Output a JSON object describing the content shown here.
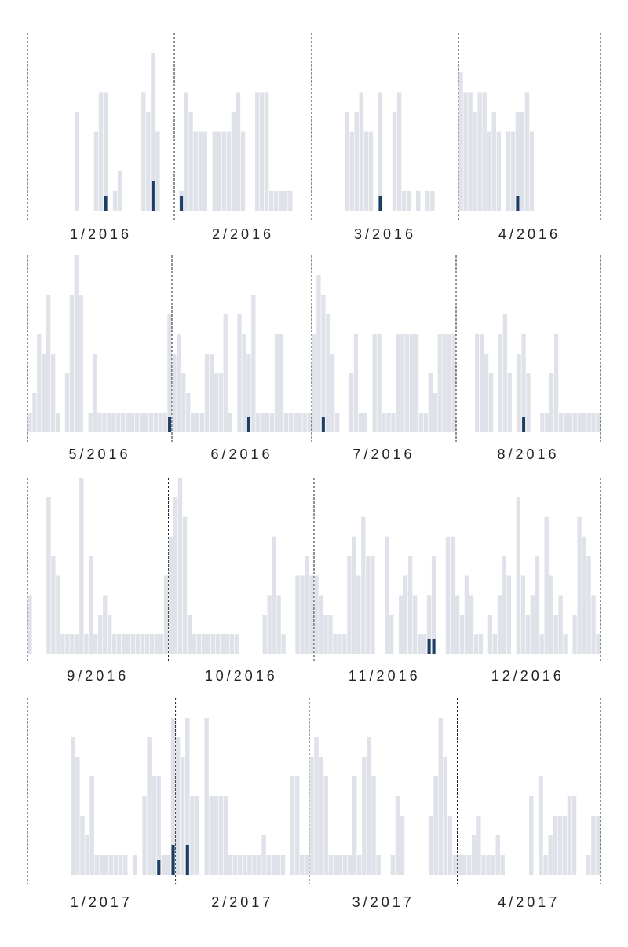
{
  "chart_data": {
    "type": "bar",
    "unit": "day",
    "colors": {
      "background_bar": "#dfe3e9",
      "highlight_bar": "#1d3d63",
      "divider": "#222222",
      "label": "#222222"
    },
    "grid": false,
    "rows": [
      {
        "months": [
          {
            "label": "1/2016",
            "days": 31,
            "bars": [
              0,
              0,
              0,
              0,
              0,
              0,
              0,
              0,
              0,
              0,
              5,
              0,
              0,
              0,
              4,
              6,
              6,
              0,
              1,
              2,
              0,
              0,
              0,
              0,
              6,
              5,
              8,
              4,
              0,
              0,
              0
            ],
            "highlight": [
              0,
              0,
              0,
              0,
              0,
              0,
              0,
              0,
              0,
              0,
              0,
              0,
              0,
              0,
              0,
              0,
              1,
              0,
              0,
              0,
              0,
              0,
              0,
              0,
              0,
              0,
              2,
              0,
              0,
              0,
              0
            ]
          },
          {
            "label": "2/2016",
            "days": 29,
            "bars": [
              0,
              1,
              6,
              5,
              4,
              4,
              4,
              0,
              4,
              4,
              4,
              4,
              5,
              6,
              4,
              0,
              0,
              6,
              6,
              6,
              1,
              1,
              1,
              1,
              1,
              0,
              0,
              0,
              0
            ],
            "highlight": [
              0,
              1,
              0,
              0,
              0,
              0,
              0,
              0,
              0,
              0,
              0,
              0,
              0,
              0,
              0,
              0,
              0,
              0,
              0,
              0,
              0,
              0,
              0,
              0,
              0,
              0,
              0,
              0,
              0
            ]
          },
          {
            "label": "3/2016",
            "days": 31,
            "bars": [
              0,
              0,
              0,
              0,
              0,
              0,
              0,
              5,
              4,
              5,
              6,
              4,
              4,
              0,
              6,
              0,
              0,
              5,
              6,
              1,
              1,
              0,
              1,
              0,
              1,
              1,
              0,
              0,
              0,
              0,
              0
            ],
            "highlight": [
              0,
              0,
              0,
              0,
              0,
              0,
              0,
              0,
              0,
              0,
              0,
              0,
              0,
              0,
              1,
              0,
              0,
              0,
              0,
              0,
              0,
              0,
              0,
              0,
              0,
              0,
              0,
              0,
              0,
              0,
              0
            ]
          },
          {
            "label": "4/2016",
            "days": 30,
            "bars": [
              7,
              6,
              6,
              5,
              6,
              6,
              4,
              5,
              4,
              0,
              4,
              4,
              5,
              5,
              6,
              4,
              0,
              0,
              0,
              0,
              0,
              0,
              0,
              0,
              0,
              0,
              0,
              0,
              0,
              0
            ],
            "highlight": [
              0,
              0,
              0,
              0,
              0,
              0,
              0,
              0,
              0,
              0,
              0,
              0,
              1,
              0,
              0,
              0,
              0,
              0,
              0,
              0,
              0,
              0,
              0,
              0,
              0,
              0,
              0,
              0,
              0,
              0
            ]
          }
        ]
      },
      {
        "months": [
          {
            "label": "5/2016",
            "days": 31,
            "bars": [
              1,
              2,
              5,
              4,
              7,
              4,
              1,
              0,
              3,
              7,
              9,
              7,
              0,
              1,
              4,
              1,
              1,
              1,
              1,
              1,
              1,
              1,
              1,
              1,
              1,
              1,
              1,
              1,
              1,
              1,
              6
            ],
            "highlight": [
              0,
              0,
              0,
              0,
              0,
              0,
              0,
              0,
              0,
              0,
              0,
              0,
              0,
              0,
              0,
              0,
              0,
              0,
              0,
              0,
              0,
              0,
              0,
              0,
              0,
              0,
              0,
              0,
              0,
              0,
              1
            ]
          },
          {
            "label": "6/2016",
            "days": 30,
            "bars": [
              4,
              5,
              3,
              2,
              1,
              1,
              1,
              4,
              4,
              3,
              3,
              6,
              1,
              0,
              6,
              5,
              4,
              7,
              1,
              1,
              1,
              1,
              5,
              5,
              1,
              1,
              1,
              1,
              1,
              1
            ],
            "highlight": [
              0,
              0,
              0,
              0,
              0,
              0,
              0,
              0,
              0,
              0,
              0,
              0,
              0,
              0,
              0,
              0,
              1,
              0,
              0,
              0,
              0,
              0,
              0,
              0,
              0,
              0,
              0,
              0,
              0,
              0
            ]
          },
          {
            "label": "7/2016",
            "days": 31,
            "bars": [
              5,
              8,
              7,
              6,
              4,
              1,
              0,
              0,
              3,
              5,
              1,
              1,
              0,
              5,
              5,
              1,
              1,
              1,
              5,
              5,
              5,
              5,
              5,
              1,
              1,
              3,
              2,
              5,
              5,
              5,
              5
            ],
            "highlight": [
              0,
              0,
              1,
              0,
              0,
              0,
              0,
              0,
              0,
              0,
              0,
              0,
              0,
              0,
              0,
              0,
              0,
              0,
              0,
              0,
              0,
              0,
              0,
              0,
              0,
              0,
              0,
              0,
              0,
              0,
              0
            ]
          },
          {
            "label": "8/2016",
            "days": 31,
            "bars": [
              0,
              0,
              0,
              0,
              5,
              5,
              4,
              3,
              0,
              5,
              6,
              3,
              0,
              4,
              5,
              3,
              0,
              0,
              1,
              1,
              3,
              5,
              1,
              1,
              1,
              1,
              1,
              1,
              1,
              1,
              1
            ],
            "highlight": [
              0,
              0,
              0,
              0,
              0,
              0,
              0,
              0,
              0,
              0,
              0,
              0,
              0,
              0,
              1,
              0,
              0,
              0,
              0,
              0,
              0,
              0,
              0,
              0,
              0,
              0,
              0,
              0,
              0,
              0,
              0
            ]
          }
        ]
      },
      {
        "months": [
          {
            "label": "9/2016",
            "days": 30,
            "bars": [
              3,
              0,
              0,
              0,
              8,
              5,
              4,
              1,
              1,
              1,
              1,
              9,
              1,
              5,
              1,
              2,
              3,
              2,
              1,
              1,
              1,
              1,
              1,
              1,
              1,
              1,
              1,
              1,
              1,
              4
            ],
            "highlight": [
              0,
              0,
              0,
              0,
              0,
              0,
              0,
              0,
              0,
              0,
              0,
              0,
              0,
              0,
              0,
              0,
              0,
              0,
              0,
              0,
              0,
              0,
              0,
              0,
              0,
              0,
              0,
              0,
              0,
              0
            ]
          },
          {
            "label": "10/2016",
            "days": 31,
            "bars": [
              6,
              8,
              9,
              7,
              2,
              1,
              1,
              1,
              1,
              1,
              1,
              1,
              1,
              1,
              1,
              0,
              0,
              0,
              0,
              0,
              2,
              3,
              6,
              3,
              1,
              0,
              0,
              4,
              4,
              5,
              4
            ],
            "highlight": [
              0,
              0,
              0,
              0,
              0,
              0,
              0,
              0,
              0,
              0,
              0,
              0,
              0,
              0,
              0,
              0,
              0,
              0,
              0,
              0,
              0,
              0,
              0,
              0,
              0,
              0,
              0,
              0,
              0,
              0,
              0
            ]
          },
          {
            "label": "11/2016",
            "days": 30,
            "bars": [
              4,
              3,
              2,
              2,
              1,
              1,
              1,
              5,
              6,
              4,
              7,
              5,
              5,
              0,
              0,
              6,
              2,
              0,
              3,
              4,
              5,
              3,
              1,
              1,
              3,
              5,
              0,
              0,
              6,
              6
            ],
            "highlight": [
              0,
              0,
              0,
              0,
              0,
              0,
              0,
              0,
              0,
              0,
              0,
              0,
              0,
              0,
              0,
              0,
              0,
              0,
              0,
              0,
              0,
              0,
              0,
              0,
              1,
              1,
              0,
              0,
              0,
              0
            ]
          },
          {
            "label": "12/2016",
            "days": 31,
            "bars": [
              3,
              2,
              4,
              3,
              1,
              1,
              0,
              2,
              1,
              3,
              5,
              4,
              0,
              8,
              4,
              2,
              3,
              5,
              1,
              7,
              4,
              2,
              3,
              1,
              0,
              2,
              7,
              6,
              5,
              3,
              1
            ],
            "highlight": [
              0,
              0,
              0,
              0,
              0,
              0,
              0,
              0,
              0,
              0,
              0,
              0,
              0,
              0,
              0,
              0,
              0,
              0,
              0,
              0,
              0,
              0,
              0,
              0,
              0,
              0,
              0,
              0,
              0,
              0,
              0
            ]
          }
        ]
      },
      {
        "months": [
          {
            "label": "1/2017",
            "days": 31,
            "bars": [
              0,
              0,
              0,
              0,
              0,
              0,
              0,
              0,
              0,
              7,
              6,
              3,
              2,
              5,
              1,
              1,
              1,
              1,
              1,
              1,
              1,
              0,
              1,
              0,
              4,
              7,
              5,
              5,
              1,
              1,
              8
            ],
            "highlight": [
              0,
              0,
              0,
              0,
              0,
              0,
              0,
              0,
              0,
              0,
              0,
              0,
              0,
              0,
              0,
              0,
              0,
              0,
              0,
              0,
              0,
              0,
              0,
              0,
              0,
              0,
              0,
              1,
              0,
              0,
              2
            ]
          },
          {
            "label": "2/2017",
            "days": 28,
            "bars": [
              7,
              6,
              8,
              4,
              4,
              0,
              8,
              4,
              4,
              4,
              4,
              1,
              1,
              1,
              1,
              1,
              1,
              1,
              2,
              1,
              1,
              1,
              1,
              0,
              5,
              5,
              1,
              1
            ],
            "highlight": [
              0,
              0,
              2,
              0,
              0,
              0,
              0,
              0,
              0,
              0,
              0,
              0,
              0,
              0,
              0,
              0,
              0,
              0,
              0,
              0,
              0,
              0,
              0,
              0,
              0,
              0,
              0,
              0
            ]
          },
          {
            "label": "3/2017",
            "days": 31,
            "bars": [
              6,
              7,
              6,
              5,
              1,
              1,
              1,
              1,
              1,
              5,
              1,
              6,
              7,
              5,
              1,
              0,
              0,
              1,
              4,
              3,
              0,
              0,
              0,
              0,
              0,
              3,
              5,
              8,
              6,
              3,
              1
            ],
            "highlight": [
              0,
              0,
              0,
              0,
              0,
              0,
              0,
              0,
              0,
              0,
              0,
              0,
              0,
              0,
              0,
              0,
              0,
              0,
              0,
              0,
              0,
              0,
              0,
              0,
              0,
              0,
              0,
              0,
              0,
              0,
              0
            ]
          },
          {
            "label": "4/2017",
            "days": 30,
            "bars": [
              1,
              1,
              1,
              2,
              3,
              1,
              1,
              1,
              2,
              1,
              0,
              0,
              0,
              0,
              0,
              4,
              0,
              5,
              1,
              2,
              3,
              3,
              3,
              4,
              4,
              0,
              0,
              1,
              3,
              3
            ],
            "highlight": [
              0,
              0,
              0,
              0,
              0,
              0,
              0,
              0,
              0,
              0,
              0,
              0,
              0,
              0,
              0,
              0,
              0,
              0,
              0,
              0,
              0,
              0,
              0,
              0,
              0,
              0,
              0,
              0,
              0,
              0
            ]
          }
        ]
      }
    ]
  }
}
